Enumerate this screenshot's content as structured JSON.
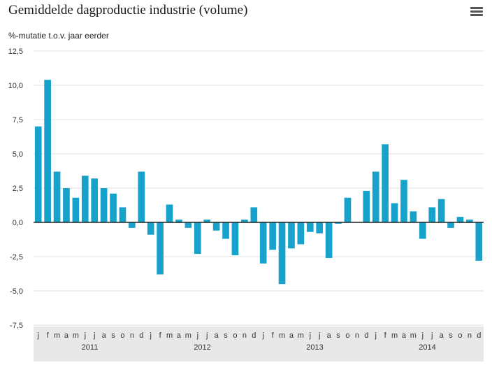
{
  "title": "Gemiddelde dagproductie industrie (volume)",
  "menu_icon": "hamburger-menu-icon",
  "chart_data": {
    "type": "bar",
    "title": "Gemiddelde dagproductie industrie (volume)",
    "ylabel": "%-mutatie t.o.v. jaar eerder",
    "xlabel": "",
    "ylim": [
      -7.5,
      12.5
    ],
    "yticks": [
      "12,5",
      "10,0",
      "7,5",
      "5,0",
      "2,5",
      "0,0",
      "-2,5",
      "-5,0",
      "-7,5"
    ],
    "ytick_values": [
      12.5,
      10,
      7.5,
      5,
      2.5,
      0,
      -2.5,
      -5,
      -7.5
    ],
    "grid": true,
    "bar_color": "#17a2cc",
    "categories": [
      "j",
      "f",
      "m",
      "a",
      "m",
      "j",
      "j",
      "a",
      "s",
      "o",
      "n",
      "d",
      "j",
      "f",
      "m",
      "a",
      "m",
      "j",
      "j",
      "a",
      "s",
      "o",
      "n",
      "d",
      "j",
      "f",
      "m",
      "a",
      "m",
      "j",
      "j",
      "a",
      "s",
      "o",
      "n",
      "d",
      "j",
      "f",
      "m",
      "a",
      "m",
      "j",
      "j",
      "a",
      "s",
      "o",
      "n",
      "d"
    ],
    "years": [
      "2011",
      "2012",
      "2013",
      "2014"
    ],
    "values": [
      7.0,
      10.4,
      3.7,
      2.5,
      1.8,
      3.4,
      3.2,
      2.5,
      2.1,
      1.1,
      -0.4,
      3.7,
      -0.9,
      -3.8,
      1.3,
      0.2,
      -0.4,
      -2.3,
      0.2,
      -0.6,
      -1.2,
      -2.4,
      0.2,
      1.1,
      -3.0,
      -2.0,
      -4.5,
      -1.9,
      -1.6,
      -0.7,
      -0.8,
      -2.6,
      -0.1,
      1.8,
      0.0,
      2.3,
      3.7,
      5.7,
      1.4,
      3.1,
      0.8,
      -1.2,
      1.1,
      1.7,
      -0.4,
      0.4,
      0.2,
      -2.8
    ]
  }
}
